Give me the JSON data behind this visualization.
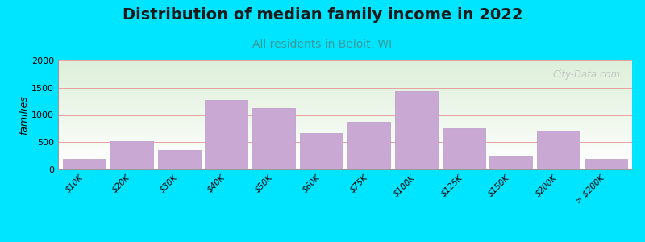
{
  "title": "Distribution of median family income in 2022",
  "subtitle": "All residents in Beloit, WI",
  "ylabel": "families",
  "categories": [
    "$10K",
    "$20K",
    "$30K",
    "$40K",
    "$50K",
    "$60K",
    "$75K",
    "$100K",
    "$125K",
    "$150K",
    "$200K",
    "> $200K"
  ],
  "values": [
    200,
    520,
    350,
    1280,
    1120,
    660,
    880,
    1430,
    750,
    240,
    710,
    200
  ],
  "bar_color": "#c9a8d4",
  "bar_edge_color": "#b898c8",
  "ylim": [
    0,
    2000
  ],
  "yticks": [
    0,
    500,
    1000,
    1500,
    2000
  ],
  "background_outer": "#00e5ff",
  "background_plot_top_color": "#dcefd8",
  "background_plot_bottom_color": "#ffffff",
  "title_fontsize": 14,
  "subtitle_fontsize": 10,
  "subtitle_color": "#3a9a9a",
  "ylabel_fontsize": 9,
  "watermark_text": "City-Data.com",
  "watermark_color": "#c0c0c0",
  "grid_color": "#e8a0a0",
  "tick_fontsize": 7.5,
  "ytick_fontsize": 8
}
